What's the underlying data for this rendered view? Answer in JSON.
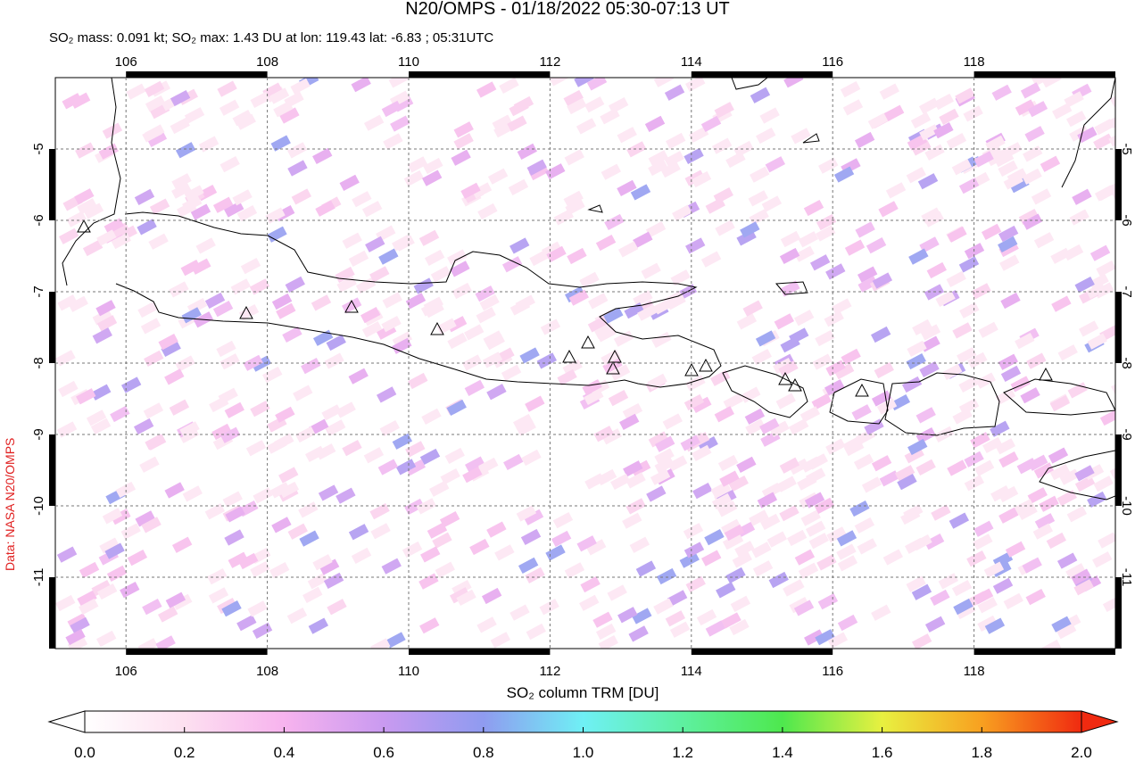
{
  "title": "N20/OMPS - 01/18/2022 05:30-07:13 UT",
  "subtitle": "SO₂ mass: 0.091 kt; SO₂ max: 1.43 DU at lon: 119.43 lat: -6.83 ; 05:31UTC",
  "credit": "Data: NASA N20/OMPS",
  "map": {
    "lonlim": [
      105,
      120
    ],
    "latlim": [
      -4,
      -12
    ],
    "lon_ticks": [
      106,
      108,
      110,
      112,
      114,
      116,
      118
    ],
    "lat_ticks": [
      -5,
      -6,
      -7,
      -8,
      -9,
      -10,
      -11
    ]
  },
  "colorbar": {
    "label": "SO₂ column TRM [DU]",
    "lim": [
      0,
      2
    ],
    "ticks": [
      {
        "value": 0,
        "label": "0.0"
      },
      {
        "value": 0.2,
        "label": "0.2"
      },
      {
        "value": 0.4,
        "label": "0.4"
      },
      {
        "value": 0.6,
        "label": "0.6"
      },
      {
        "value": 0.8,
        "label": "0.8"
      },
      {
        "value": 1,
        "label": "1.0"
      },
      {
        "value": 1.2,
        "label": "1.2"
      },
      {
        "value": 1.4,
        "label": "1.4"
      },
      {
        "value": 1.6,
        "label": "1.6"
      },
      {
        "value": 1.8,
        "label": "1.8"
      },
      {
        "value": 2,
        "label": "2.0"
      }
    ]
  }
}
